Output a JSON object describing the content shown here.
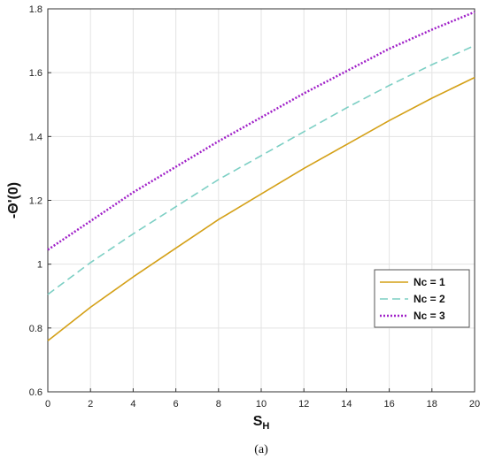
{
  "chart_data": {
    "type": "line",
    "xlabel_main": "S",
    "xlabel_sub": "H",
    "ylabel": "-Θ'(0)",
    "xlim": [
      0,
      20
    ],
    "ylim": [
      0.6,
      1.8
    ],
    "x_ticks": [
      "0",
      "2",
      "4",
      "6",
      "8",
      "10",
      "12",
      "14",
      "16",
      "18",
      "20"
    ],
    "y_ticks": [
      "0.6",
      "0.8",
      "1",
      "1.2",
      "1.4",
      "1.6",
      "1.8"
    ],
    "grid": true,
    "legend_position": "lower-right",
    "x": [
      0,
      2,
      4,
      6,
      8,
      10,
      12,
      14,
      16,
      18,
      20
    ],
    "series": [
      {
        "name": "Nc = 1",
        "color": "#d4a017",
        "style": "solid",
        "values": [
          0.76,
          0.865,
          0.96,
          1.05,
          1.14,
          1.22,
          1.3,
          1.375,
          1.45,
          1.52,
          1.585
        ]
      },
      {
        "name": "Nc = 2",
        "color": "#7ccfc4",
        "style": "dashed",
        "values": [
          0.905,
          1.005,
          1.095,
          1.18,
          1.265,
          1.34,
          1.415,
          1.49,
          1.56,
          1.625,
          1.685
        ]
      },
      {
        "name": "Nc = 3",
        "color": "#a020c8",
        "style": "dotted",
        "values": [
          1.045,
          1.135,
          1.225,
          1.305,
          1.385,
          1.46,
          1.535,
          1.605,
          1.675,
          1.735,
          1.79
        ]
      }
    ]
  },
  "caption": "(a)"
}
